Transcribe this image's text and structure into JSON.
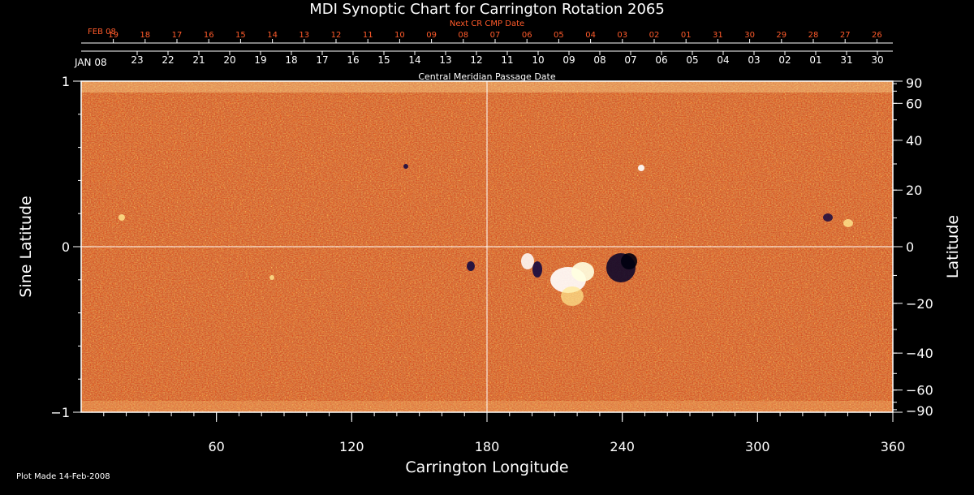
{
  "chart_data": {
    "type": "heatmap",
    "title": "MDI Synoptic Chart for Carrington Rotation 2065",
    "xlabel": "Carrington Longitude",
    "ylabel_left": "Sine Latitude",
    "ylabel_right": "Latitude",
    "xlim": [
      0,
      360
    ],
    "ylim": [
      -1,
      1
    ],
    "x_ticks": [
      "60",
      "120",
      "180",
      "240",
      "300",
      "360"
    ],
    "x_tick_values": [
      60,
      120,
      180,
      240,
      300,
      360
    ],
    "y_ticks_left": [
      "1",
      "0",
      "−1"
    ],
    "y_tick_values_left": [
      1,
      0,
      -1
    ],
    "y_ticks_right": [
      "90",
      "60",
      "40",
      "20",
      "0",
      "−20",
      "−40",
      "−60",
      "−90"
    ],
    "y_tick_values_right": [
      90,
      60,
      40,
      20,
      0,
      -20,
      -40,
      -60,
      -90
    ],
    "grid": "lines at longitude 180 and sine latitude 0",
    "top_axis_1": {
      "label": "Next CR CMP Date",
      "month_label": "FEB 08",
      "dates": [
        "19",
        "18",
        "17",
        "16",
        "15",
        "14",
        "13",
        "12",
        "11",
        "10",
        "09",
        "08",
        "07",
        "06",
        "05",
        "04",
        "03",
        "02",
        "01",
        "31",
        "30",
        "29",
        "28",
        "27",
        "26"
      ],
      "color": "#ff5a2a"
    },
    "top_axis_2": {
      "label": "Central Meridian Passage Date",
      "month_label": "JAN 08",
      "dates": [
        "23",
        "22",
        "21",
        "20",
        "19",
        "18",
        "17",
        "16",
        "15",
        "14",
        "13",
        "12",
        "11",
        "10",
        "09",
        "08",
        "07",
        "06",
        "05",
        "04",
        "03",
        "02",
        "01",
        "31",
        "30"
      ]
    },
    "colors": {
      "background": "#000000",
      "field_base": "#e84a10",
      "field_bright": "#ffd070",
      "field_white": "#ffffff",
      "field_dark": "#1a0a40"
    }
  },
  "footer": {
    "plot_made": "Plot Made 14-Feb-2008"
  }
}
